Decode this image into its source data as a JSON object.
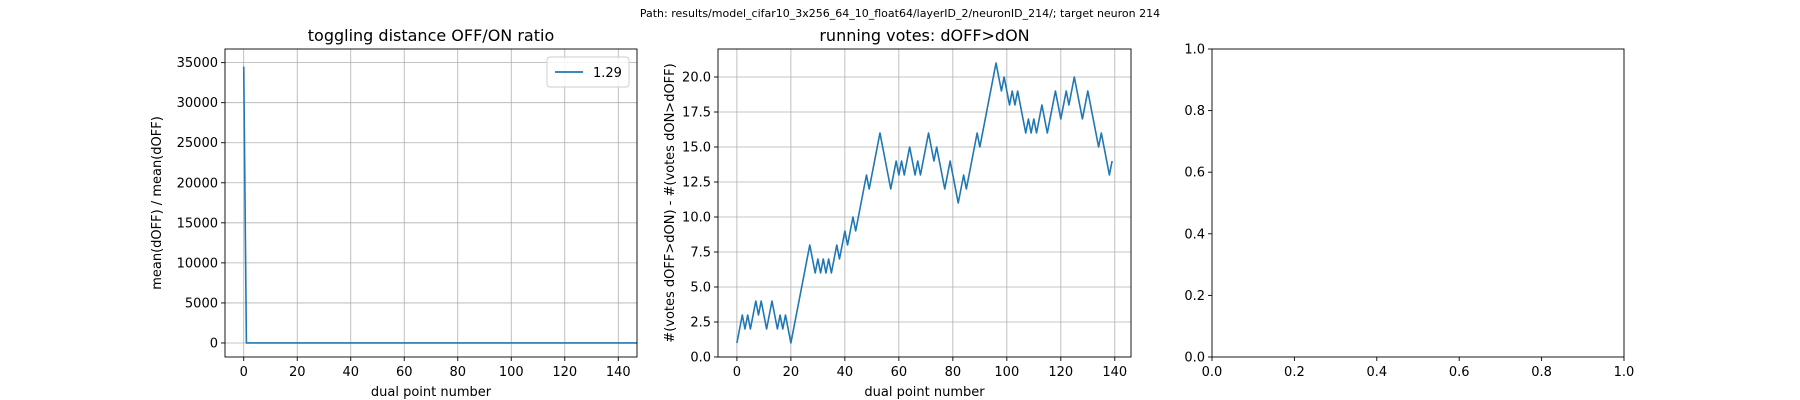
{
  "figure": {
    "suptitle": "Path: results/model_cifar10_3x256_64_10_float64/layerID_2/neuronID_214/; target neuron 214"
  },
  "chart_data": [
    {
      "type": "line",
      "title": "toggling distance OFF/ON ratio",
      "xlabel": "dual point number",
      "ylabel": "mean(dOFF) / mean(dOFF)",
      "xlim": [
        -7,
        147
      ],
      "ylim": [
        -1750,
        36700
      ],
      "xticks": [
        0,
        20,
        40,
        60,
        80,
        100,
        120,
        140
      ],
      "xtick_labels": [
        "0",
        "20",
        "40",
        "60",
        "80",
        "100",
        "120",
        "140"
      ],
      "yticks": [
        0,
        5000,
        10000,
        15000,
        20000,
        25000,
        30000,
        35000
      ],
      "ytick_labels": [
        "0",
        "5000",
        "10000",
        "15000",
        "20000",
        "25000",
        "30000",
        "35000"
      ],
      "grid": true,
      "legend": "top-right",
      "series": [
        {
          "name": "1.29",
          "color": "#1f77b4",
          "x": [
            0,
            1,
            2,
            3,
            4,
            5,
            6,
            7,
            8,
            9,
            10,
            11,
            12,
            13,
            14,
            15,
            16,
            17,
            18,
            19,
            20,
            30,
            40,
            50,
            60,
            70,
            80,
            90,
            100,
            110,
            120,
            130,
            140,
            147
          ],
          "y": [
            34500,
            0,
            0,
            0,
            0,
            0,
            0,
            0,
            0,
            0,
            0,
            0,
            0,
            0,
            0,
            0,
            0,
            0,
            0,
            0,
            0,
            0,
            0,
            0,
            0,
            0,
            0,
            0,
            0,
            0,
            0,
            0,
            0,
            0
          ]
        }
      ]
    },
    {
      "type": "line",
      "title": "running votes: dOFF>dON",
      "xlabel": "dual point number",
      "ylabel": "#(votes dOFF>dON) - #(votes dON>dOFF)",
      "xlim": [
        -7,
        146
      ],
      "ylim": [
        0,
        22
      ],
      "xticks": [
        0,
        20,
        40,
        60,
        80,
        100,
        120,
        140
      ],
      "xtick_labels": [
        "0",
        "20",
        "40",
        "60",
        "80",
        "100",
        "120",
        "140"
      ],
      "yticks": [
        0,
        2.5,
        5,
        7.5,
        10,
        12.5,
        15,
        17.5,
        20
      ],
      "ytick_labels": [
        "0.0",
        "2.5",
        "5.0",
        "7.5",
        "10.0",
        "12.5",
        "15.0",
        "17.5",
        "20.0"
      ],
      "grid": true,
      "series": [
        {
          "color": "#1f77b4",
          "x": [
            0,
            1,
            2,
            3,
            4,
            5,
            6,
            7,
            8,
            9,
            10,
            11,
            12,
            13,
            14,
            15,
            16,
            17,
            18,
            19,
            20,
            21,
            22,
            23,
            24,
            25,
            26,
            27,
            28,
            29,
            30,
            31,
            32,
            33,
            34,
            35,
            36,
            37,
            38,
            39,
            40,
            41,
            42,
            43,
            44,
            45,
            46,
            47,
            48,
            49,
            50,
            51,
            52,
            53,
            54,
            55,
            56,
            57,
            58,
            59,
            60,
            61,
            62,
            63,
            64,
            65,
            66,
            67,
            68,
            69,
            70,
            71,
            72,
            73,
            74,
            75,
            76,
            77,
            78,
            79,
            80,
            81,
            82,
            83,
            84,
            85,
            86,
            87,
            88,
            89,
            90,
            91,
            92,
            93,
            94,
            95,
            96,
            97,
            98,
            99,
            100,
            101,
            102,
            103,
            104,
            105,
            106,
            107,
            108,
            109,
            110,
            111,
            112,
            113,
            114,
            115,
            116,
            117,
            118,
            119,
            120,
            121,
            122,
            123,
            124,
            125,
            126,
            127,
            128,
            129,
            130,
            131,
            132,
            133,
            134,
            135,
            136,
            137,
            138,
            139
          ],
          "y": [
            1,
            2,
            3,
            2,
            3,
            2,
            3,
            4,
            3,
            4,
            3,
            2,
            3,
            4,
            3,
            2,
            3,
            2,
            3,
            2,
            1,
            2,
            3,
            4,
            5,
            6,
            7,
            8,
            7,
            6,
            7,
            6,
            7,
            6,
            7,
            6,
            7,
            8,
            7,
            8,
            9,
            8,
            9,
            10,
            9,
            10,
            11,
            12,
            13,
            12,
            13,
            14,
            15,
            16,
            15,
            14,
            13,
            12,
            13,
            14,
            13,
            14,
            13,
            14,
            15,
            14,
            13,
            14,
            13,
            14,
            15,
            16,
            15,
            14,
            15,
            14,
            13,
            12,
            13,
            14,
            13,
            12,
            11,
            12,
            13,
            12,
            13,
            14,
            15,
            16,
            15,
            16,
            17,
            18,
            19,
            20,
            21,
            20,
            19,
            20,
            19,
            18,
            19,
            18,
            19,
            18,
            17,
            16,
            17,
            16,
            17,
            16,
            17,
            18,
            17,
            16,
            17,
            18,
            19,
            18,
            17,
            18,
            19,
            18,
            19,
            20,
            19,
            18,
            17,
            18,
            19,
            18,
            17,
            16,
            15,
            16,
            15,
            14,
            13,
            14
          ]
        }
      ]
    },
    {
      "type": "line",
      "title": "",
      "xlabel": "",
      "ylabel": "",
      "xlim": [
        0,
        1
      ],
      "ylim": [
        0,
        1
      ],
      "xticks": [
        0,
        0.2,
        0.4,
        0.6,
        0.8,
        1.0
      ],
      "xtick_labels": [
        "0.0",
        "0.2",
        "0.4",
        "0.6",
        "0.8",
        "1.0"
      ],
      "yticks": [
        0,
        0.2,
        0.4,
        0.6,
        0.8,
        1.0
      ],
      "ytick_labels": [
        "0.0",
        "0.2",
        "0.4",
        "0.6",
        "0.8",
        "1.0"
      ],
      "grid": false,
      "series": []
    }
  ]
}
